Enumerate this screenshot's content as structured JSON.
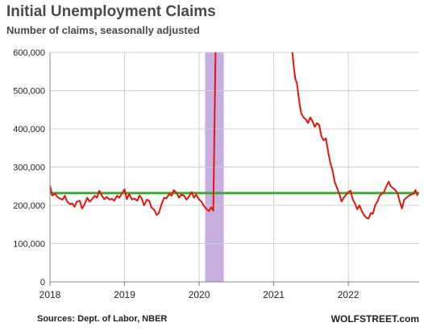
{
  "chart_data": {
    "type": "line",
    "title": "Initial Unemployment Claims",
    "subtitle": "Number of claims, seasonally adjusted",
    "source": "Sources: Dept. of Labor, NBER",
    "brand": "WOLFSTREET.com",
    "xlim": [
      2018.0,
      2022.95
    ],
    "ylim": [
      0,
      600000
    ],
    "x_ticks": [
      2018,
      2019,
      2020,
      2021,
      2022
    ],
    "x_tick_labels": [
      "2018",
      "2019",
      "2020",
      "2021",
      "2022"
    ],
    "y_ticks": [
      0,
      100000,
      200000,
      300000,
      400000,
      500000,
      600000
    ],
    "y_tick_labels": [
      "0",
      "100,000",
      "200,000",
      "300,000",
      "400,000",
      "500,000",
      "600,000"
    ],
    "grid": {
      "horizontal": true,
      "vertical": true
    },
    "recession_band": {
      "x0": 2020.08,
      "x1": 2020.33,
      "color": "#c8aee0"
    },
    "reference_line": {
      "y": 232000,
      "color": "#3aaa35"
    },
    "series": [
      {
        "color": "#e8140c",
        "points": [
          [
            2018.0,
            252000
          ],
          [
            2018.03,
            226000
          ],
          [
            2018.07,
            230000
          ],
          [
            2018.1,
            222000
          ],
          [
            2018.13,
            218000
          ],
          [
            2018.17,
            215000
          ],
          [
            2018.2,
            225000
          ],
          [
            2018.23,
            210000
          ],
          [
            2018.27,
            203000
          ],
          [
            2018.3,
            205000
          ],
          [
            2018.33,
            196000
          ],
          [
            2018.36,
            210000
          ],
          [
            2018.4,
            212000
          ],
          [
            2018.43,
            192000
          ],
          [
            2018.46,
            201000
          ],
          [
            2018.5,
            220000
          ],
          [
            2018.53,
            210000
          ],
          [
            2018.56,
            215000
          ],
          [
            2018.6,
            225000
          ],
          [
            2018.63,
            220000
          ],
          [
            2018.66,
            238000
          ],
          [
            2018.7,
            224000
          ],
          [
            2018.73,
            216000
          ],
          [
            2018.76,
            222000
          ],
          [
            2018.8,
            215000
          ],
          [
            2018.83,
            217000
          ],
          [
            2018.86,
            212000
          ],
          [
            2018.9,
            225000
          ],
          [
            2018.93,
            220000
          ],
          [
            2018.96,
            230000
          ],
          [
            2019.0,
            242000
          ],
          [
            2019.03,
            216000
          ],
          [
            2019.06,
            230000
          ],
          [
            2019.1,
            215000
          ],
          [
            2019.13,
            218000
          ],
          [
            2019.17,
            212000
          ],
          [
            2019.2,
            226000
          ],
          [
            2019.23,
            218000
          ],
          [
            2019.26,
            200000
          ],
          [
            2019.3,
            215000
          ],
          [
            2019.33,
            212000
          ],
          [
            2019.36,
            195000
          ],
          [
            2019.4,
            188000
          ],
          [
            2019.43,
            175000
          ],
          [
            2019.46,
            180000
          ],
          [
            2019.5,
            205000
          ],
          [
            2019.53,
            220000
          ],
          [
            2019.56,
            218000
          ],
          [
            2019.6,
            230000
          ],
          [
            2019.63,
            225000
          ],
          [
            2019.66,
            240000
          ],
          [
            2019.7,
            232000
          ],
          [
            2019.73,
            220000
          ],
          [
            2019.76,
            228000
          ],
          [
            2019.8,
            225000
          ],
          [
            2019.83,
            215000
          ],
          [
            2019.86,
            222000
          ],
          [
            2019.9,
            235000
          ],
          [
            2019.93,
            220000
          ],
          [
            2019.96,
            228000
          ],
          [
            2020.0,
            215000
          ],
          [
            2020.03,
            210000
          ],
          [
            2020.06,
            200000
          ],
          [
            2020.1,
            190000
          ],
          [
            2020.13,
            185000
          ],
          [
            2020.16,
            195000
          ],
          [
            2020.19,
            186000
          ],
          [
            2020.22,
            600000
          ],
          [
            2021.25,
            600000
          ],
          [
            2021.27,
            560000
          ],
          [
            2021.29,
            530000
          ],
          [
            2021.31,
            520000
          ],
          [
            2021.33,
            490000
          ],
          [
            2021.35,
            460000
          ],
          [
            2021.37,
            440000
          ],
          [
            2021.4,
            430000
          ],
          [
            2021.43,
            425000
          ],
          [
            2021.46,
            415000
          ],
          [
            2021.49,
            430000
          ],
          [
            2021.52,
            420000
          ],
          [
            2021.55,
            405000
          ],
          [
            2021.58,
            415000
          ],
          [
            2021.61,
            410000
          ],
          [
            2021.64,
            380000
          ],
          [
            2021.67,
            370000
          ],
          [
            2021.7,
            375000
          ],
          [
            2021.73,
            340000
          ],
          [
            2021.76,
            310000
          ],
          [
            2021.79,
            290000
          ],
          [
            2021.82,
            260000
          ],
          [
            2021.85,
            245000
          ],
          [
            2021.88,
            230000
          ],
          [
            2021.91,
            210000
          ],
          [
            2021.94,
            220000
          ],
          [
            2022.0,
            235000
          ],
          [
            2022.03,
            238000
          ],
          [
            2022.06,
            215000
          ],
          [
            2022.09,
            205000
          ],
          [
            2022.12,
            190000
          ],
          [
            2022.15,
            200000
          ],
          [
            2022.18,
            185000
          ],
          [
            2022.21,
            175000
          ],
          [
            2022.24,
            168000
          ],
          [
            2022.27,
            165000
          ],
          [
            2022.3,
            180000
          ],
          [
            2022.33,
            178000
          ],
          [
            2022.36,
            200000
          ],
          [
            2022.39,
            210000
          ],
          [
            2022.42,
            225000
          ],
          [
            2022.45,
            230000
          ],
          [
            2022.48,
            235000
          ],
          [
            2022.51,
            250000
          ],
          [
            2022.54,
            262000
          ],
          [
            2022.57,
            250000
          ],
          [
            2022.6,
            245000
          ],
          [
            2022.63,
            240000
          ],
          [
            2022.66,
            232000
          ],
          [
            2022.69,
            210000
          ],
          [
            2022.72,
            192000
          ],
          [
            2022.75,
            215000
          ],
          [
            2022.78,
            220000
          ],
          [
            2022.81,
            225000
          ],
          [
            2022.84,
            228000
          ],
          [
            2022.87,
            230000
          ],
          [
            2022.9,
            240000
          ],
          [
            2022.93,
            225000
          ]
        ]
      }
    ]
  }
}
